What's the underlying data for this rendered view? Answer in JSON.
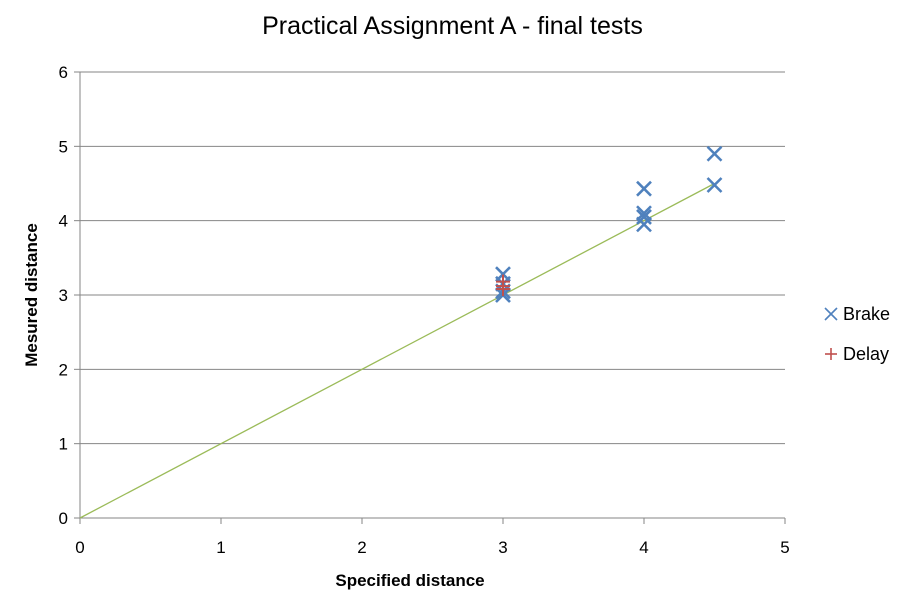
{
  "chart_data": {
    "type": "scatter",
    "title": "Practical Assignment A - final tests",
    "xlabel": "Specified distance",
    "ylabel": "Mesured distance",
    "xlim": [
      0,
      5
    ],
    "ylim": [
      0,
      6
    ],
    "x_ticks": [
      "0",
      "1",
      "2",
      "3",
      "4",
      "5"
    ],
    "y_ticks": [
      "0",
      "1",
      "2",
      "3",
      "4",
      "5",
      "6"
    ],
    "grid": "horizontal",
    "legend_position": "right",
    "series": [
      {
        "name": "Brake",
        "marker": "x",
        "color": "#4F81BD",
        "points": [
          {
            "x": 3,
            "y": 3.28
          },
          {
            "x": 3,
            "y": 3.15
          },
          {
            "x": 3,
            "y": 3.05
          },
          {
            "x": 3,
            "y": 3.0
          },
          {
            "x": 4,
            "y": 4.43
          },
          {
            "x": 4,
            "y": 4.1
          },
          {
            "x": 4,
            "y": 4.05
          },
          {
            "x": 4,
            "y": 3.95
          },
          {
            "x": 4.5,
            "y": 4.9
          },
          {
            "x": 4.5,
            "y": 4.48
          }
        ]
      },
      {
        "name": "Delay",
        "marker": "plus",
        "color": "#C0504D",
        "points": [
          {
            "x": 3,
            "y": 3.18
          },
          {
            "x": 3,
            "y": 3.12
          },
          {
            "x": 3,
            "y": 3.08
          }
        ]
      }
    ],
    "reference_line": {
      "color": "#9BBB59",
      "points": [
        {
          "x": 0,
          "y": 0
        },
        {
          "x": 4.5,
          "y": 4.5
        }
      ]
    }
  }
}
